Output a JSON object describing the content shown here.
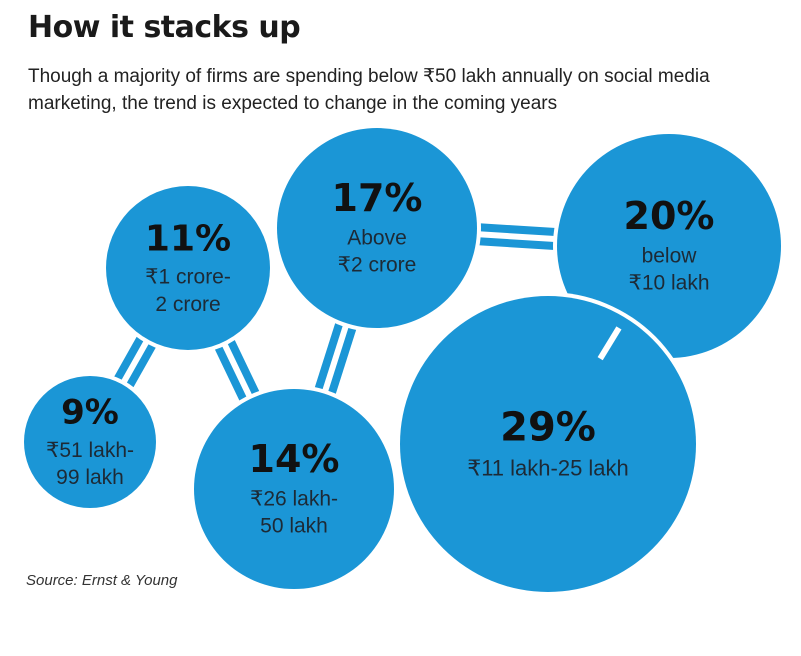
{
  "title": "How it stacks up",
  "subtitle": "Though a majority of firms are spending below ₹50 lakh annually on social media marketing, the trend is expected to change in the coming years",
  "source": "Source: Ernst & Young",
  "colors": {
    "bubble": "#1b96d6",
    "connector": "#1b96d6",
    "gap": "#ffffff"
  },
  "chart_data": {
    "type": "bubble",
    "unit": "%",
    "bubbles": [
      {
        "category": "₹1 crore-2 crore",
        "value": 11,
        "label_lines": [
          "₹1 crore-",
          "2 crore"
        ]
      },
      {
        "category": "Above ₹2 crore",
        "value": 17,
        "label_lines": [
          "Above",
          "₹2 crore"
        ]
      },
      {
        "category": "below ₹10 lakh",
        "value": 20,
        "label_lines": [
          "below",
          "₹10 lakh"
        ]
      },
      {
        "category": "₹51 lakh-99 lakh",
        "value": 9,
        "label_lines": [
          "₹51 lakh-",
          "99 lakh"
        ]
      },
      {
        "category": "₹26 lakh-50 lakh",
        "value": 14,
        "label_lines": [
          "₹26 lakh-",
          "50 lakh"
        ]
      },
      {
        "category": "₹11 lakh-25 lakh",
        "value": 29,
        "label_lines": [
          "₹11 lakh-25 lakh"
        ]
      }
    ]
  }
}
